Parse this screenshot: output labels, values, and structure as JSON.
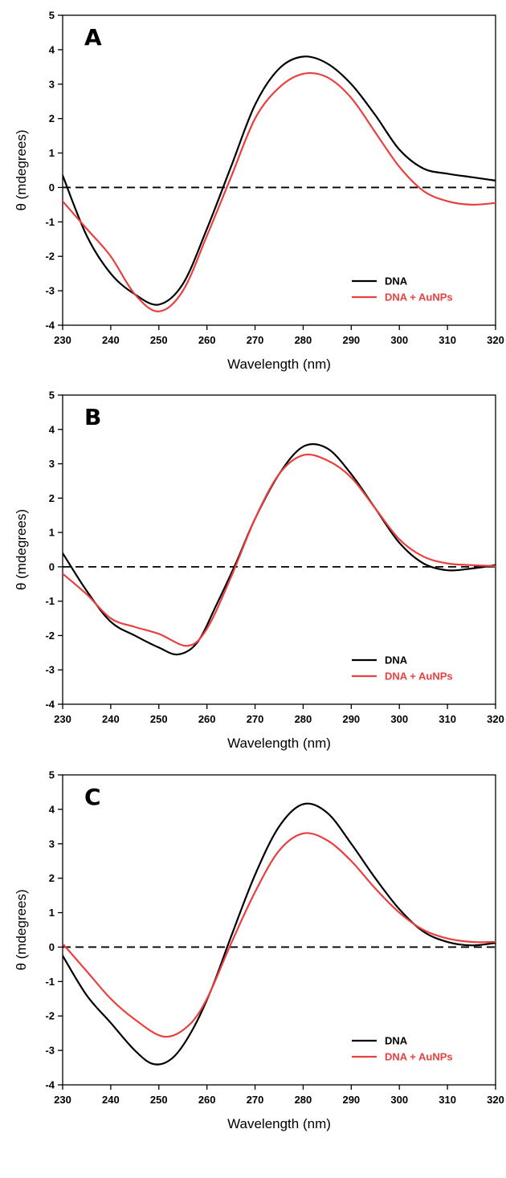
{
  "chart_data": [
    {
      "type": "line",
      "panel_label": "A",
      "xlabel": "Wavelength (nm)",
      "ylabel": "θ (mdegrees)",
      "xlim": [
        230,
        320
      ],
      "ylim": [
        -4,
        5
      ],
      "xticks": [
        230,
        240,
        250,
        260,
        270,
        280,
        290,
        300,
        310,
        320
      ],
      "yticks": [
        -4,
        -3,
        -2,
        -1,
        0,
        1,
        2,
        3,
        4,
        5
      ],
      "reference_line": {
        "y": 0,
        "style": "dashed"
      },
      "legend_position": "lower-right",
      "series": [
        {
          "name": "DNA",
          "color": "#000000",
          "x": [
            230,
            235,
            240,
            245,
            250,
            255,
            260,
            265,
            270,
            275,
            280,
            285,
            290,
            295,
            300,
            305,
            310,
            315,
            320
          ],
          "y": [
            0.35,
            -1.4,
            -2.5,
            -3.1,
            -3.4,
            -2.8,
            -1.2,
            0.6,
            2.4,
            3.45,
            3.8,
            3.6,
            3.0,
            2.1,
            1.1,
            0.55,
            0.4,
            0.3,
            0.2
          ]
        },
        {
          "name": "DNA + AuNPs",
          "color": "#e8403f",
          "x": [
            230,
            235,
            240,
            245,
            250,
            255,
            260,
            265,
            270,
            275,
            280,
            285,
            290,
            295,
            300,
            305,
            310,
            315,
            320
          ],
          "y": [
            -0.4,
            -1.2,
            -2.0,
            -3.1,
            -3.6,
            -3.0,
            -1.4,
            0.3,
            2.0,
            2.9,
            3.3,
            3.2,
            2.6,
            1.6,
            0.6,
            -0.1,
            -0.4,
            -0.5,
            -0.45
          ]
        }
      ]
    },
    {
      "type": "line",
      "panel_label": "B",
      "xlabel": "Wavelength (nm)",
      "ylabel": "θ (mdegrees)",
      "xlim": [
        230,
        320
      ],
      "ylim": [
        -4,
        5
      ],
      "xticks": [
        230,
        240,
        250,
        260,
        270,
        280,
        290,
        300,
        310,
        320
      ],
      "yticks": [
        -4,
        -3,
        -2,
        -1,
        0,
        1,
        2,
        3,
        4,
        5
      ],
      "reference_line": {
        "y": 0,
        "style": "dashed"
      },
      "legend_position": "lower-right",
      "series": [
        {
          "name": "DNA",
          "color": "#000000",
          "x": [
            230,
            235,
            240,
            245,
            250,
            254,
            258,
            262,
            266,
            270,
            275,
            280,
            285,
            290,
            295,
            300,
            305,
            310,
            315,
            320
          ],
          "y": [
            0.4,
            -0.7,
            -1.6,
            -2.0,
            -2.35,
            -2.55,
            -2.2,
            -1.1,
            0.1,
            1.4,
            2.7,
            3.5,
            3.45,
            2.7,
            1.7,
            0.7,
            0.1,
            -0.1,
            -0.05,
            0.05
          ]
        },
        {
          "name": "DNA + AuNPs",
          "color": "#e8403f",
          "x": [
            230,
            235,
            240,
            245,
            250,
            256,
            260,
            265,
            270,
            275,
            280,
            285,
            290,
            295,
            300,
            305,
            310,
            315,
            320
          ],
          "y": [
            -0.2,
            -0.8,
            -1.5,
            -1.75,
            -1.95,
            -2.3,
            -1.8,
            -0.3,
            1.4,
            2.7,
            3.25,
            3.1,
            2.6,
            1.7,
            0.8,
            0.3,
            0.1,
            0.05,
            0.02
          ]
        }
      ]
    },
    {
      "type": "line",
      "panel_label": "C",
      "xlabel": "Wavelength (nm)",
      "ylabel": "θ (mdegrees)",
      "xlim": [
        230,
        320
      ],
      "ylim": [
        -4,
        5
      ],
      "xticks": [
        230,
        240,
        250,
        260,
        270,
        280,
        290,
        300,
        310,
        320
      ],
      "yticks": [
        -4,
        -3,
        -2,
        -1,
        0,
        1,
        2,
        3,
        4,
        5
      ],
      "reference_line": {
        "y": 0,
        "style": "dashed"
      },
      "legend_position": "lower-right",
      "series": [
        {
          "name": "DNA",
          "color": "#000000",
          "x": [
            230,
            235,
            240,
            245,
            249,
            253,
            257,
            261,
            265,
            270,
            275,
            280,
            285,
            290,
            295,
            300,
            305,
            310,
            315,
            320
          ],
          "y": [
            -0.25,
            -1.4,
            -2.2,
            -3.0,
            -3.4,
            -3.2,
            -2.4,
            -1.2,
            0.3,
            2.1,
            3.5,
            4.15,
            3.9,
            3.0,
            2.0,
            1.1,
            0.45,
            0.15,
            0.05,
            0.12
          ]
        },
        {
          "name": "DNA + AuNPs",
          "color": "#e8403f",
          "x": [
            230,
            235,
            240,
            245,
            251,
            256,
            260,
            265,
            270,
            275,
            280,
            285,
            290,
            295,
            300,
            305,
            310,
            315,
            320
          ],
          "y": [
            0.1,
            -0.7,
            -1.5,
            -2.1,
            -2.6,
            -2.3,
            -1.5,
            0.1,
            1.6,
            2.8,
            3.3,
            3.1,
            2.5,
            1.7,
            1.0,
            0.5,
            0.25,
            0.15,
            0.15
          ]
        }
      ]
    }
  ]
}
